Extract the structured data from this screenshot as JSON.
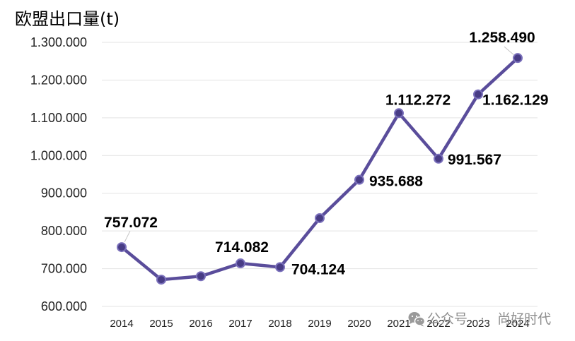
{
  "chart_data": {
    "type": "line",
    "title": "欧盟出口量(t)",
    "categories": [
      "2014",
      "2015",
      "2016",
      "2017",
      "2018",
      "2019",
      "2020",
      "2021",
      "2022",
      "2023",
      "2024"
    ],
    "series": [
      {
        "values": [
          757072,
          671000,
          680000,
          714082,
          704124,
          834000,
          935688,
          1112272,
          991567,
          1162129,
          1258490
        ],
        "data_labels": [
          "757.072",
          "",
          "",
          "714.082",
          "704.124",
          "",
          "935.688",
          "1.112.272",
          "991.567",
          "1.162.129",
          "1.258.490"
        ]
      }
    ],
    "y_ticks": [
      {
        "value": 600000,
        "label": "600.000"
      },
      {
        "value": 700000,
        "label": "700.000"
      },
      {
        "value": 800000,
        "label": "800.000"
      },
      {
        "value": 900000,
        "label": "900.000"
      },
      {
        "value": 1000000,
        "label": "1.000.000"
      },
      {
        "value": 1100000,
        "label": "1.100.000"
      },
      {
        "value": 1200000,
        "label": "1.200.000"
      },
      {
        "value": 1300000,
        "label": "1.300.000"
      }
    ],
    "ylim": [
      600000,
      1300000
    ],
    "grid": true,
    "colors": {
      "line": "#5a4d9b",
      "marker_fill": "#483c85",
      "marker_stroke": "#7a70bb",
      "grid": "#e3e3e3",
      "text": "#000000",
      "axis_text": "#222222",
      "leader": "#c4c4c4"
    }
  },
  "watermark": {
    "icon": "wechat-icon",
    "text": "公众号 · 尚好时代",
    "color": "#8f8f8f"
  }
}
